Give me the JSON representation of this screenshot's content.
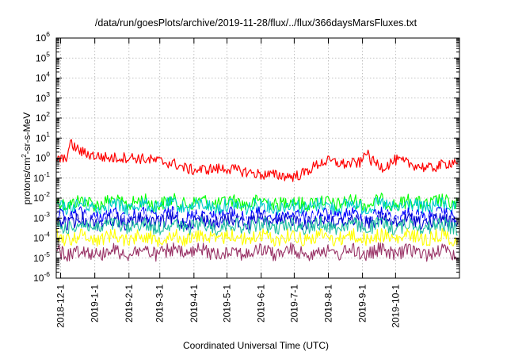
{
  "chart_data": {
    "type": "line",
    "title": "/data/run/goesPlots/archive/2019-11-28/flux/../flux/366daysMarsFluxes.txt",
    "xlabel": "Coordinated Universal Time (UTC)",
    "ylabel_parts": {
      "pre": "protons/cm",
      "sup": "2",
      "post": "-sr-s-MeV"
    },
    "yscale": "log",
    "ylim_exp": [
      -6,
      6
    ],
    "y_ticks": [
      {
        "base": "10",
        "exp": "-6"
      },
      {
        "base": "10",
        "exp": "-5"
      },
      {
        "base": "10",
        "exp": "-4"
      },
      {
        "base": "10",
        "exp": "-3"
      },
      {
        "base": "10",
        "exp": "-2"
      },
      {
        "base": "10",
        "exp": "-1"
      },
      {
        "base": "10",
        "exp": "0"
      },
      {
        "base": "10",
        "exp": "1"
      },
      {
        "base": "10",
        "exp": "2"
      },
      {
        "base": "10",
        "exp": "3"
      },
      {
        "base": "10",
        "exp": "4"
      },
      {
        "base": "10",
        "exp": "5"
      },
      {
        "base": "10",
        "exp": "6"
      }
    ],
    "x_range": [
      "2018-11-27",
      "2019-11-28"
    ],
    "x_ticks": [
      "2018-12-1",
      "2019-1-1",
      "2019-2-1",
      "2019-3-1",
      "2019-4-1",
      "2019-5-1",
      "2019-6-1",
      "2019-7-1",
      "2019-8-1",
      "2019-9-1",
      "2019-10-1"
    ],
    "grid": true,
    "legend": "none",
    "series": [
      {
        "color": "#ff0000",
        "points": [
          [
            "2018-11-27",
            1.0
          ],
          [
            "2018-12-5",
            0.8
          ],
          [
            "2018-12-10",
            5.0
          ],
          [
            "2018-12-20",
            2.0
          ],
          [
            "2019-1-1",
            1.3
          ],
          [
            "2019-1-15",
            1.0
          ],
          [
            "2019-2-1",
            1.1
          ],
          [
            "2019-2-15",
            0.9
          ],
          [
            "2019-3-1",
            0.7
          ],
          [
            "2019-3-15",
            0.5
          ],
          [
            "2019-3-25",
            0.3
          ],
          [
            "2019-4-1",
            0.25
          ],
          [
            "2019-4-15",
            0.28
          ],
          [
            "2019-5-1",
            0.3
          ],
          [
            "2019-5-15",
            0.22
          ],
          [
            "2019-6-1",
            0.15
          ],
          [
            "2019-6-15",
            0.14
          ],
          [
            "2019-7-1",
            0.12
          ],
          [
            "2019-7-10",
            0.18
          ],
          [
            "2019-7-25",
            0.6
          ],
          [
            "2019-8-1",
            0.7
          ],
          [
            "2019-8-15",
            0.5
          ],
          [
            "2019-9-1",
            0.6
          ],
          [
            "2019-9-3",
            3.0
          ],
          [
            "2019-9-8",
            0.8
          ],
          [
            "2019-9-20",
            0.35
          ],
          [
            "2019-10-1",
            0.8
          ],
          [
            "2019-10-15",
            0.5
          ],
          [
            "2019-11-1",
            0.3
          ],
          [
            "2019-11-15",
            0.5
          ],
          [
            "2019-11-28",
            0.8
          ]
        ]
      },
      {
        "color": "#00ff00",
        "level": 0.006
      },
      {
        "color": "#00cccc",
        "level": 0.004
      },
      {
        "color": "#0000ff",
        "level": 0.0013
      },
      {
        "color": "#ffffff",
        "level": 0.0009
      },
      {
        "color": "#0000cc",
        "level": 0.0007
      },
      {
        "color": "#20c0a0",
        "level": 0.0004
      },
      {
        "color": "#ffff00",
        "level": 0.00011
      },
      {
        "color": "#993366",
        "level": 2e-05
      }
    ]
  }
}
